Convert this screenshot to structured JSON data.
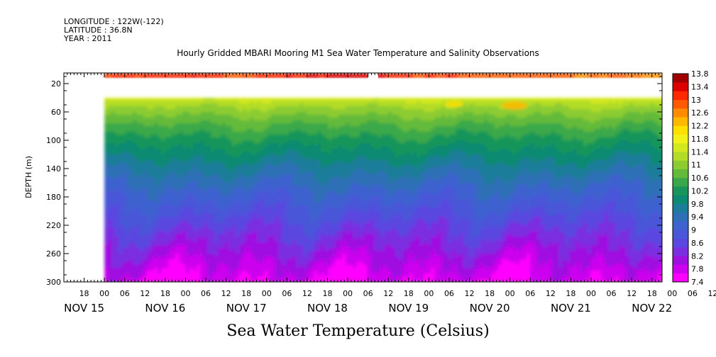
{
  "header": {
    "longitude": "LONGITUDE : 122W(-122)",
    "latitude": "LATITUDE : 36.8N",
    "year": "YEAR : 2011"
  },
  "chart_data": {
    "type": "heatmap",
    "title": "Hourly Gridded MBARI Mooring M1 Sea Water Temperature and Salinity Observations",
    "xlabel": "Sea Water Temperature (Celsius)",
    "ylabel": "DEPTH (m)",
    "x_hour_ticks": [
      "18",
      "00",
      "06",
      "12",
      "18",
      "00",
      "06",
      "12",
      "18",
      "00",
      "06",
      "12",
      "18",
      "00",
      "06",
      "12",
      "18",
      "00",
      "06",
      "12",
      "18",
      "00",
      "06",
      "12",
      "18",
      "00",
      "06",
      "12",
      "18",
      "00",
      "06",
      "12"
    ],
    "x_day_labels": [
      "NOV 15",
      "NOV 16",
      "NOV 17",
      "NOV 18",
      "NOV 19",
      "NOV 20",
      "NOV 21",
      "NOV 22"
    ],
    "x_range": [
      "2011-11-15T12:00",
      "2011-11-22T21:00"
    ],
    "data_start": "2011-11-16T00:00",
    "y_ticks": [
      20,
      60,
      100,
      140,
      180,
      220,
      260,
      300
    ],
    "ylim": [
      300,
      5
    ],
    "colorbar_labels": [
      "13.8",
      "13.4",
      "13",
      "12.6",
      "12.2",
      "11.8",
      "11.4",
      "11",
      "10.6",
      "10.2",
      "9.8",
      "9.4",
      "9",
      "8.6",
      "8.2",
      "7.8",
      "7.4"
    ],
    "colorbar_range": [
      7.4,
      13.8
    ],
    "colors": [
      "#ff00ff",
      "#cc00ee",
      "#9f10e0",
      "#7a2ee0",
      "#5a46e0",
      "#4a57d8",
      "#3e62cf",
      "#2f6fb6",
      "#1c7d9a",
      "#0c8a72",
      "#18955a",
      "#3aa84a",
      "#64ba3a",
      "#8ccc30",
      "#b2dc28",
      "#d4e81e",
      "#f2f21a",
      "#ffe000",
      "#ffb800",
      "#ff8c00",
      "#ff5a00",
      "#ff2800",
      "#dc0000",
      "#a00000"
    ],
    "series": [
      {
        "name": "",
        "depth_range_m": [
          5,
          20
        ],
        "values": [
          13.0,
          13.2,
          13.1,
          13.0,
          13.2,
          13.4,
          13.3,
          13.1,
          13.0,
          12.9,
          12.8,
          12.8,
          12.8,
          12.6
        ]
      },
      {
        "name": "",
        "depth_range_m": [
          40,
          300
        ],
        "surface_temp": 11.5,
        "bottom_temp": 7.6
      }
    ],
    "data_gap": [
      "2011-11-19T06:00",
      "2011-11-19T09:00"
    ]
  }
}
